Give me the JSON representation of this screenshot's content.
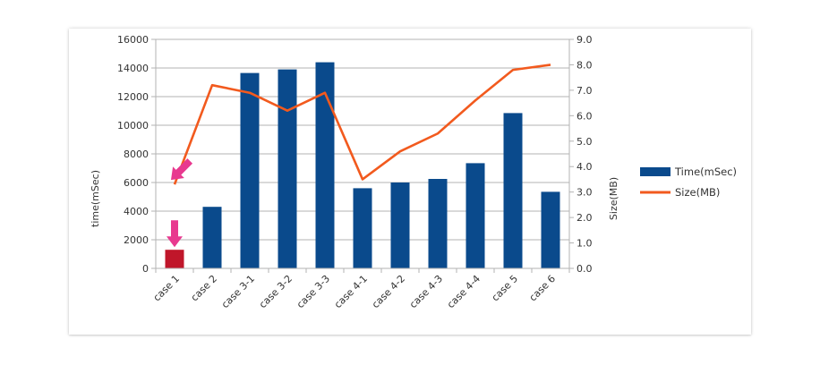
{
  "chart_data": {
    "type": "bar",
    "categories": [
      "case 1",
      "case 2",
      "case 3-1",
      "case 3-2",
      "case 3-3",
      "case 4-1",
      "case 4-2",
      "case 4-3",
      "case 4-4",
      "case 5",
      "case 6"
    ],
    "series": [
      {
        "name": "Time(mSec)",
        "type": "bar",
        "axis": "left",
        "color": "#0a4a8c",
        "values": [
          1300,
          4300,
          13650,
          13900,
          14400,
          5600,
          6000,
          6250,
          7350,
          10850,
          5350
        ]
      },
      {
        "name": "Size(MB)",
        "type": "line",
        "axis": "right",
        "color": "#f25a1e",
        "values": [
          3.3,
          7.2,
          6.9,
          6.2,
          6.9,
          3.5,
          4.6,
          5.3,
          6.6,
          7.8,
          8.0
        ]
      }
    ],
    "highlight_color": "#c0162a",
    "highlight_index": 0,
    "arrow_color": "#e8398f",
    "y_left": {
      "label": "time(mSec)",
      "lim": [
        0,
        16000
      ],
      "ticks": [
        "0",
        "2000",
        "4000",
        "6000",
        "8000",
        "10000",
        "12000",
        "14000",
        "16000"
      ]
    },
    "y_right": {
      "label": "Size(MB)",
      "lim": [
        0,
        9
      ],
      "ticks": [
        "0.0",
        "1.0",
        "2.0",
        "3.0",
        "4.0",
        "5.0",
        "6.0",
        "7.0",
        "8.0",
        "9.0"
      ]
    },
    "grid": true,
    "legend_position": "right"
  }
}
